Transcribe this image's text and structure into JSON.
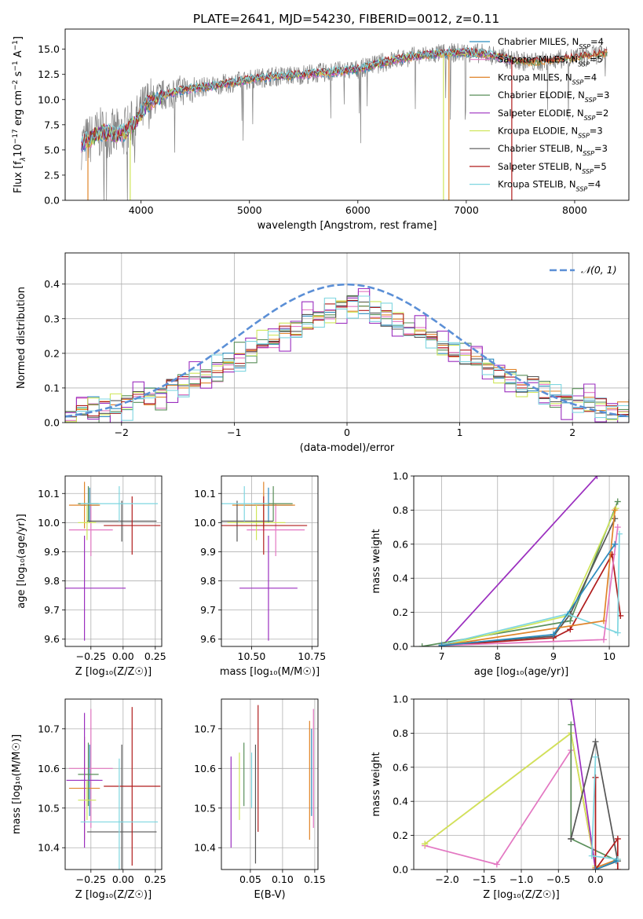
{
  "figure": {
    "title": "PLATE=2641, MJD=54230, FIBERID=0012, z=0.11"
  },
  "colors": {
    "Chabrier MILES": "#2b8cbe",
    "Salpeter MILES": "#e377c2",
    "Kroupa MILES": "#e0842a",
    "Chabrier ELODIE": "#5a8f5a",
    "Salpeter ELODIE": "#9b2fbf",
    "Kroupa ELODIE": "#cfe65a",
    "Chabrier STELIB": "#555555",
    "Salpeter STELIB": "#b01c1c",
    "Kroupa STELIB": "#7fd6e0",
    "gaussian": "#5b8fd6",
    "grid": "#b0b0b0"
  },
  "chart_data": [
    {
      "id": "spectrum",
      "type": "line",
      "xlabel": "wavelength [Angstrom, rest frame]",
      "ylabel_parts": [
        "Flux [f",
        "λ",
        "10",
        "−17",
        " erg cm",
        "−2",
        " s",
        "−1",
        " A",
        "−1",
        "]"
      ],
      "xlim": [
        3300,
        8500
      ],
      "ylim": [
        0,
        17
      ],
      "xticks": [
        4000,
        5000,
        6000,
        7000,
        8000
      ],
      "yticks": [
        0.0,
        2.5,
        5.0,
        7.5,
        10.0,
        12.5,
        15.0
      ],
      "legend_position": "right",
      "legend": [
        {
          "model": "Chabrier MILES",
          "label": "Chabrier MILES, N",
          "sub": "SSP",
          "eq": "=4"
        },
        {
          "model": "Salpeter MILES",
          "label": "Salpeter MILES, N",
          "sub": "SSP",
          "eq": "=5"
        },
        {
          "model": "Kroupa MILES",
          "label": "Kroupa MILES, N",
          "sub": "SSP",
          "eq": "=4"
        },
        {
          "model": "Chabrier ELODIE",
          "label": "Chabrier ELODIE, N",
          "sub": "SSP",
          "eq": "=3"
        },
        {
          "model": "Salpeter ELODIE",
          "label": "Salpeter ELODIE, N",
          "sub": "SSP",
          "eq": "=2"
        },
        {
          "model": "Kroupa ELODIE",
          "label": "Kroupa ELODIE, N",
          "sub": "SSP",
          "eq": "=3"
        },
        {
          "model": "Chabrier STELIB",
          "label": "Chabrier STELIB, N",
          "sub": "SSP",
          "eq": "=3"
        },
        {
          "model": "Salpeter STELIB",
          "label": "Salpeter STELIB, N",
          "sub": "SSP",
          "eq": "=5"
        },
        {
          "model": "Kroupa STELIB",
          "label": "Kroupa STELIB, N",
          "sub": "SSP",
          "eq": "=4"
        }
      ],
      "continuum": {
        "x": [
          3450,
          3550,
          3650,
          3750,
          3850,
          3950,
          4050,
          4150,
          4250,
          4400,
          4600,
          4800,
          5000,
          5200,
          5400,
          5600,
          5800,
          6000,
          6200,
          6400,
          6600,
          6800,
          7000,
          7200,
          7400,
          7600,
          7800,
          8000,
          8300
        ],
        "y": [
          5.6,
          6.2,
          6.8,
          6.5,
          6.8,
          7.8,
          9.5,
          10.2,
          10.6,
          11.0,
          11.3,
          11.6,
          12.0,
          12.3,
          12.4,
          12.6,
          12.8,
          13.0,
          13.6,
          14.1,
          14.4,
          14.6,
          14.7,
          14.5,
          14.0,
          13.7,
          13.9,
          14.2,
          14.6
        ]
      },
      "data_x_range": [
        3450,
        8300
      ],
      "model_x_range": [
        3450,
        7450
      ],
      "model_x_range_long": [
        3450,
        8300
      ],
      "drop_lines": [
        {
          "model": "Kroupa MILES",
          "x": 3510
        },
        {
          "model": "Kroupa ELODIE",
          "x": 3900
        },
        {
          "model": "Kroupa ELODIE",
          "x": 6790
        },
        {
          "model": "Kroupa MILES",
          "x": 6840
        },
        {
          "model": "Salpeter STELIB",
          "x": 7420
        }
      ]
    },
    {
      "id": "residuals",
      "type": "step-histogram",
      "xlabel": "(data-model)/error",
      "ylabel": "Normed distribution",
      "xlim": [
        -2.5,
        2.5
      ],
      "ylim": [
        0,
        0.49
      ],
      "xticks": [
        -2,
        -1,
        0,
        1,
        2
      ],
      "xtick_labels": [
        "−2",
        "−1",
        "0",
        "1",
        "2"
      ],
      "yticks": [
        0.0,
        0.1,
        0.2,
        0.3,
        0.4
      ],
      "legend_position": "top-right",
      "legend_label": "𝒩(0, 1)",
      "bin_width": 0.1,
      "baseline": [
        0.026,
        0.032,
        0.038,
        0.044,
        0.05,
        0.059,
        0.068,
        0.078,
        0.089,
        0.1,
        0.113,
        0.127,
        0.142,
        0.158,
        0.174,
        0.19,
        0.206,
        0.223,
        0.24,
        0.257,
        0.274,
        0.29,
        0.306,
        0.321,
        0.335,
        0.349,
        0.36,
        0.371,
        0.38,
        0.387,
        0.393,
        0.397,
        0.4,
        0.4,
        0.397,
        0.393,
        0.387,
        0.38,
        0.371,
        0.36,
        0.349,
        0.335,
        0.321,
        0.306,
        0.29,
        0.274,
        0.257,
        0.24,
        0.223,
        0.206,
        0.19
      ],
      "series_offsets": [
        {
          "model": "Chabrier MILES",
          "offset": 0.006
        },
        {
          "model": "Salpeter MILES",
          "offset": -0.012
        },
        {
          "model": "Kroupa MILES",
          "offset": 0.003
        },
        {
          "model": "Chabrier ELODIE",
          "offset": 0.014
        },
        {
          "model": "Salpeter ELODIE",
          "offset": 0.02
        },
        {
          "model": "Kroupa ELODIE",
          "offset": 0.01
        },
        {
          "model": "Chabrier STELIB",
          "offset": -0.004
        },
        {
          "model": "Salpeter STELIB",
          "offset": 0.0
        },
        {
          "model": "Kroupa STELIB",
          "offset": -0.016
        }
      ],
      "gaussian": {
        "mu": 0,
        "sigma": 1
      }
    },
    {
      "id": "age-Z",
      "type": "errorbar",
      "xlabel": "Z [log₁₀(Z/Z☉)]",
      "ylabel": "age  [log₁₀(age/yr)]",
      "xlim": [
        -0.45,
        0.3
      ],
      "ylim": [
        9.575,
        10.16
      ],
      "xticks": [
        -0.25,
        0.0,
        0.25
      ],
      "xtick_labels": [
        "−0.25",
        "0.00",
        "0.25"
      ],
      "yticks": [
        9.6,
        9.7,
        9.8,
        9.9,
        10.0,
        10.1
      ],
      "points": [
        {
          "model": "Chabrier MILES",
          "x": -0.26,
          "xe": 0.07,
          "y": 10.06,
          "ye": 0.06
        },
        {
          "model": "Salpeter MILES",
          "x": -0.25,
          "xe": 0.17,
          "y": 9.975,
          "ye": 0.09
        },
        {
          "model": "Kroupa MILES",
          "x": -0.3,
          "xe": 0.12,
          "y": 10.06,
          "ye": 0.08
        },
        {
          "model": "Chabrier ELODIE",
          "x": -0.27,
          "xe": 0.08,
          "y": 10.065,
          "ye": 0.06
        },
        {
          "model": "Salpeter ELODIE",
          "x": -0.3,
          "xe": 0.32,
          "y": 9.775,
          "ye": 0.18
        },
        {
          "model": "Kroupa ELODIE",
          "x": -0.28,
          "xe": 0.07,
          "y": 10.0,
          "ye": 0.06
        },
        {
          "model": "Chabrier STELIB",
          "x": -0.01,
          "xe": 0.27,
          "y": 10.005,
          "ye": 0.07
        },
        {
          "model": "Salpeter STELIB",
          "x": 0.07,
          "xe": 0.22,
          "y": 9.99,
          "ye": 0.1
        },
        {
          "model": "Kroupa STELIB",
          "x": -0.03,
          "xe": 0.3,
          "y": 10.065,
          "ye": 0.06
        }
      ]
    },
    {
      "id": "age-mass",
      "type": "errorbar",
      "xlabel": "mass [log₁₀(M/M☉)]",
      "xlim": [
        10.375,
        10.775
      ],
      "ylim": [
        9.575,
        10.16
      ],
      "xticks": [
        10.5,
        10.75
      ],
      "xtick_labels": [
        "10.50",
        "10.75"
      ],
      "yticks": [
        9.6,
        9.7,
        9.8,
        9.9,
        10.0,
        10.1
      ],
      "points": [
        {
          "model": "Chabrier MILES",
          "x": 10.57,
          "xe": 0.1,
          "y": 10.06,
          "ye": 0.06
        },
        {
          "model": "Salpeter MILES",
          "x": 10.6,
          "xe": 0.12,
          "y": 9.975,
          "ye": 0.09
        },
        {
          "model": "Kroupa MILES",
          "x": 10.55,
          "xe": 0.13,
          "y": 10.06,
          "ye": 0.08
        },
        {
          "model": "Chabrier ELODIE",
          "x": 10.59,
          "xe": 0.08,
          "y": 10.065,
          "ye": 0.06
        },
        {
          "model": "Salpeter ELODIE",
          "x": 10.57,
          "xe": 0.12,
          "y": 9.775,
          "ye": 0.18
        },
        {
          "model": "Kroupa ELODIE",
          "x": 10.52,
          "xe": 0.12,
          "y": 10.0,
          "ye": 0.06
        },
        {
          "model": "Chabrier STELIB",
          "x": 10.44,
          "xe": 0.15,
          "y": 10.005,
          "ye": 0.07
        },
        {
          "model": "Salpeter STELIB",
          "x": 10.55,
          "xe": 0.18,
          "y": 9.99,
          "ye": 0.1
        },
        {
          "model": "Kroupa STELIB",
          "x": 10.47,
          "xe": 0.1,
          "y": 10.065,
          "ye": 0.06
        }
      ]
    },
    {
      "id": "weight-age",
      "type": "line",
      "xlabel": "age  [log₁₀(age/yr)]",
      "ylabel": "mass weight",
      "xlim": [
        6.5,
        10.35
      ],
      "ylim": [
        0,
        1
      ],
      "xticks": [
        7,
        8,
        9,
        10
      ],
      "yticks": [
        0.0,
        0.2,
        0.4,
        0.6,
        0.8,
        1.0
      ],
      "series": [
        {
          "model": "Salpeter ELODIE",
          "x": [
            7.0,
            9.78
          ],
          "y": [
            0.0,
            1.0
          ]
        },
        {
          "model": "Chabrier ELODIE",
          "x": [
            6.65,
            9.3,
            10.15
          ],
          "y": [
            0.0,
            0.15,
            0.85
          ]
        },
        {
          "model": "Kroupa ELODIE",
          "x": [
            7.1,
            9.25,
            10.12
          ],
          "y": [
            0.01,
            0.18,
            0.81
          ]
        },
        {
          "model": "Chabrier STELIB",
          "x": [
            7.0,
            9.0,
            9.3,
            10.1
          ],
          "y": [
            0.01,
            0.06,
            0.19,
            0.75
          ]
        },
        {
          "model": "Salpeter STELIB",
          "x": [
            7.0,
            9.0,
            9.3,
            10.05,
            10.2
          ],
          "y": [
            0.005,
            0.05,
            0.1,
            0.54,
            0.18
          ]
        },
        {
          "model": "Kroupa STELIB",
          "x": [
            7.0,
            9.25,
            10.15,
            10.18
          ],
          "y": [
            0.01,
            0.19,
            0.08,
            0.66
          ]
        },
        {
          "model": "Kroupa MILES",
          "x": [
            7.0,
            9.9,
            10.1
          ],
          "y": [
            0.005,
            0.15,
            0.8
          ]
        },
        {
          "model": "Salpeter MILES",
          "x": [
            7.0,
            9.9,
            10.15
          ],
          "y": [
            0.005,
            0.04,
            0.7
          ]
        },
        {
          "model": "Chabrier MILES",
          "x": [
            7.0,
            9.0,
            10.1
          ],
          "y": [
            0.005,
            0.07,
            0.6
          ]
        }
      ]
    },
    {
      "id": "mass-Z",
      "type": "errorbar",
      "xlabel": "Z [log₁₀(Z/Z☉)]",
      "ylabel": "mass [log₁₀(M/M☉)]",
      "xlim": [
        -0.45,
        0.3
      ],
      "ylim": [
        10.345,
        10.775
      ],
      "xticks": [
        -0.25,
        0.0,
        0.25
      ],
      "xtick_labels": [
        "−0.25",
        "0.00",
        "0.25"
      ],
      "yticks": [
        10.4,
        10.5,
        10.6,
        10.7
      ],
      "points": [
        {
          "model": "Chabrier MILES",
          "x": -0.26,
          "xe": 0.07,
          "y": 10.57,
          "ye": 0.09
        },
        {
          "model": "Salpeter MILES",
          "x": -0.25,
          "xe": 0.17,
          "y": 10.6,
          "ye": 0.15
        },
        {
          "model": "Kroupa MILES",
          "x": -0.3,
          "xe": 0.12,
          "y": 10.55,
          "ye": 0.13
        },
        {
          "model": "Chabrier ELODIE",
          "x": -0.27,
          "xe": 0.08,
          "y": 10.585,
          "ye": 0.08
        },
        {
          "model": "Salpeter ELODIE",
          "x": -0.3,
          "xe": 0.14,
          "y": 10.57,
          "ye": 0.17
        },
        {
          "model": "Kroupa ELODIE",
          "x": -0.28,
          "xe": 0.07,
          "y": 10.52,
          "ye": 0.05
        },
        {
          "model": "Chabrier STELIB",
          "x": -0.01,
          "xe": 0.27,
          "y": 10.44,
          "ye": 0.22
        },
        {
          "model": "Salpeter STELIB",
          "x": 0.07,
          "xe": 0.22,
          "y": 10.555,
          "ye": 0.2
        },
        {
          "model": "Kroupa STELIB",
          "x": -0.03,
          "xe": 0.3,
          "y": 10.465,
          "ye": 0.16
        }
      ]
    },
    {
      "id": "mass-EBV",
      "type": "errorbar",
      "xlabel": "E(B-V)",
      "xlim": [
        0.005,
        0.155
      ],
      "ylim": [
        10.345,
        10.775
      ],
      "xticks": [
        0.05,
        0.1,
        0.15
      ],
      "xtick_labels": [
        "0.05",
        "0.10",
        "0.15"
      ],
      "yticks": [
        10.4,
        10.5,
        10.6,
        10.7
      ],
      "points": [
        {
          "model": "Chabrier MILES",
          "x": 0.145,
          "xe": 0.0,
          "y": 10.59,
          "ye": 0.11
        },
        {
          "model": "Salpeter MILES",
          "x": 0.148,
          "xe": 0.0,
          "y": 10.6,
          "ye": 0.15
        },
        {
          "model": "Kroupa MILES",
          "x": 0.142,
          "xe": 0.0,
          "y": 10.57,
          "ye": 0.15
        },
        {
          "model": "Chabrier ELODIE",
          "x": 0.04,
          "xe": 0.0,
          "y": 10.585,
          "ye": 0.08
        },
        {
          "model": "Salpeter ELODIE",
          "x": 0.02,
          "xe": 0.0,
          "y": 10.515,
          "ye": 0.115
        },
        {
          "model": "Kroupa ELODIE",
          "x": 0.033,
          "xe": 0.0,
          "y": 10.555,
          "ye": 0.085
        },
        {
          "model": "Chabrier STELIB",
          "x": 0.058,
          "xe": 0.0,
          "y": 10.51,
          "ye": 0.15
        },
        {
          "model": "Salpeter STELIB",
          "x": 0.062,
          "xe": 0.0,
          "y": 10.6,
          "ye": 0.16
        },
        {
          "model": "Kroupa STELIB",
          "x": 0.052,
          "xe": 0.0,
          "y": 10.57,
          "ye": 0.07
        }
      ]
    },
    {
      "id": "weight-Z",
      "type": "line",
      "xlabel": "Z [log₁₀(Z/Z☉)]",
      "ylabel": "mass weight",
      "xlim": [
        -2.45,
        0.45
      ],
      "ylim": [
        0,
        1
      ],
      "xticks": [
        -2.0,
        -1.5,
        -1.0,
        -0.5,
        0.0
      ],
      "xtick_labels": [
        "−2.0",
        "−1.5",
        "−1.0",
        "−0.5",
        "0.0"
      ],
      "yticks": [
        0.0,
        0.2,
        0.4,
        0.6,
        0.8,
        1.0
      ],
      "series": [
        {
          "model": "Salpeter MILES",
          "x": [
            -2.3,
            -1.33,
            -0.33,
            -0.33
          ],
          "y": [
            0.14,
            0.03,
            0.7,
            0.18
          ]
        },
        {
          "model": "Kroupa MILES",
          "x": [
            -2.3,
            -0.33,
            0.0,
            0.3
          ],
          "y": [
            0.15,
            0.8,
            0.01,
            0.06
          ]
        },
        {
          "model": "Kroupa ELODIE",
          "x": [
            -2.3,
            -0.33,
            0.0
          ],
          "y": [
            0.15,
            0.8,
            0.02
          ]
        },
        {
          "model": "Chabrier ELODIE",
          "x": [
            -0.33,
            -0.33,
            0.3
          ],
          "y": [
            0.85,
            0.18,
            0.05
          ]
        },
        {
          "model": "Salpeter ELODIE",
          "x": [
            -0.33,
            0.0
          ],
          "y": [
            1.0,
            0.0
          ]
        },
        {
          "model": "Chabrier STELIB",
          "x": [
            -0.33,
            0.0,
            0.3,
            0.0
          ],
          "y": [
            0.18,
            0.75,
            0.05,
            0.0
          ]
        },
        {
          "model": "Salpeter STELIB",
          "x": [
            0.0,
            0.0,
            0.3,
            0.3
          ],
          "y": [
            0.54,
            0.0,
            0.18,
            0.0
          ]
        },
        {
          "model": "Kroupa STELIB",
          "x": [
            0.0,
            -0.05,
            0.3
          ],
          "y": [
            0.66,
            0.08,
            0.06
          ]
        },
        {
          "model": "Chabrier MILES",
          "x": [
            0.0,
            0.28
          ],
          "y": [
            0.0,
            0.05
          ]
        }
      ]
    }
  ]
}
